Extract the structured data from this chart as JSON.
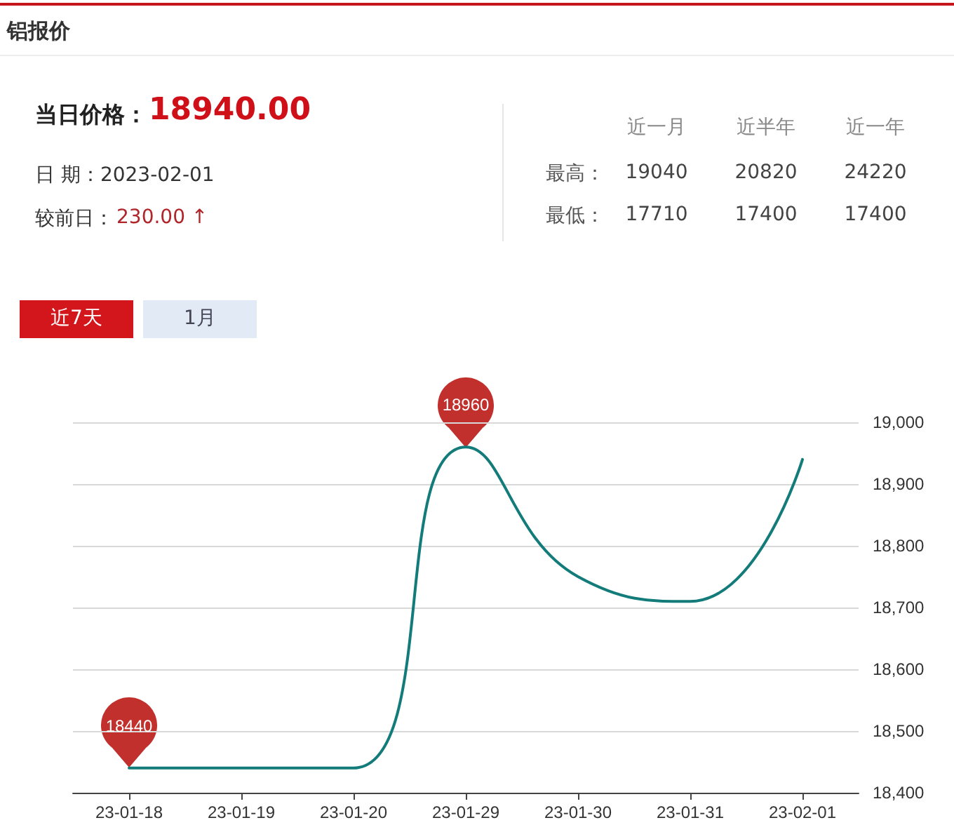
{
  "chart_data": {
    "type": "line",
    "title": "铝报价",
    "annotations": [
      "当日价格：",
      "18940.00",
      "日 期：2023-02-01",
      "较前日：",
      "230.00 ↑",
      "近一月",
      "近半年",
      "近一年",
      "最高：",
      "19040",
      "20820",
      "24220",
      "最低：",
      "17710",
      "17400",
      "17400",
      "近7天",
      "1月"
    ],
    "categories": [
      "23-01-18",
      "23-01-19",
      "23-01-20",
      "23-01-29",
      "23-01-30",
      "23-01-31",
      "23-02-01"
    ],
    "series": [
      {
        "color": "#137c7a",
        "values": [
          18440,
          18440,
          18440,
          18960,
          18750,
          18710,
          18940
        ],
        "value_labels": [
          "18440",
          null,
          null,
          "18960",
          null,
          null,
          null
        ]
      }
    ],
    "ylim": [
      18400,
      19000
    ],
    "yticks": [
      {
        "value": 18400,
        "label": "18,400"
      },
      {
        "value": 18500,
        "label": "18,500"
      },
      {
        "value": 18600,
        "label": "18,600"
      },
      {
        "value": 18700,
        "label": "18,700"
      },
      {
        "value": 18800,
        "label": "18,800"
      },
      {
        "value": 18900,
        "label": "18,900"
      },
      {
        "value": 19000,
        "label": "19,000"
      }
    ],
    "grid": "y",
    "marker": "none",
    "line_style": "solid"
  }
}
